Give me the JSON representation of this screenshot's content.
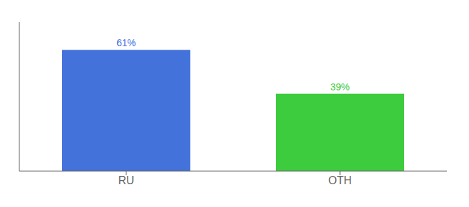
{
  "chart_data": {
    "type": "bar",
    "categories": [
      "RU",
      "OTH"
    ],
    "values": [
      61,
      39
    ],
    "value_labels": [
      "61%",
      "39%"
    ],
    "colors": [
      "#4472db",
      "#3dcc3d"
    ],
    "ylim": [
      0,
      75
    ],
    "grid": false,
    "data_labels": true,
    "tick_labels": "x"
  }
}
